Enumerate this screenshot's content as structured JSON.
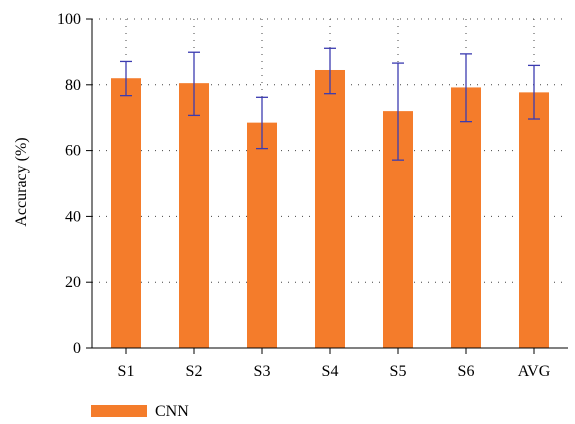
{
  "chart_data": {
    "type": "bar",
    "categories": [
      "S1",
      "S2",
      "S3",
      "S4",
      "S5",
      "S6",
      "AVG"
    ],
    "series": [
      {
        "name": "CNN",
        "values": [
          82,
          80.5,
          68.5,
          84.5,
          72,
          79.2,
          77.7
        ],
        "error_low": [
          76.7,
          70.7,
          60.6,
          77.3,
          57.1,
          68.8,
          69.6
        ],
        "error_high": [
          87.1,
          89.9,
          76.2,
          91.1,
          86.6,
          89.4,
          85.9
        ],
        "color": "#F47C2B"
      }
    ],
    "title": "",
    "xlabel": "",
    "ylabel": "Accuracy (%)",
    "ylim": [
      0,
      100
    ],
    "yticks": [
      0,
      20,
      40,
      60,
      80,
      100
    ],
    "grid": "dotted",
    "error_bar_color": "#3B3BB0",
    "legend_position": "bottom-left"
  }
}
